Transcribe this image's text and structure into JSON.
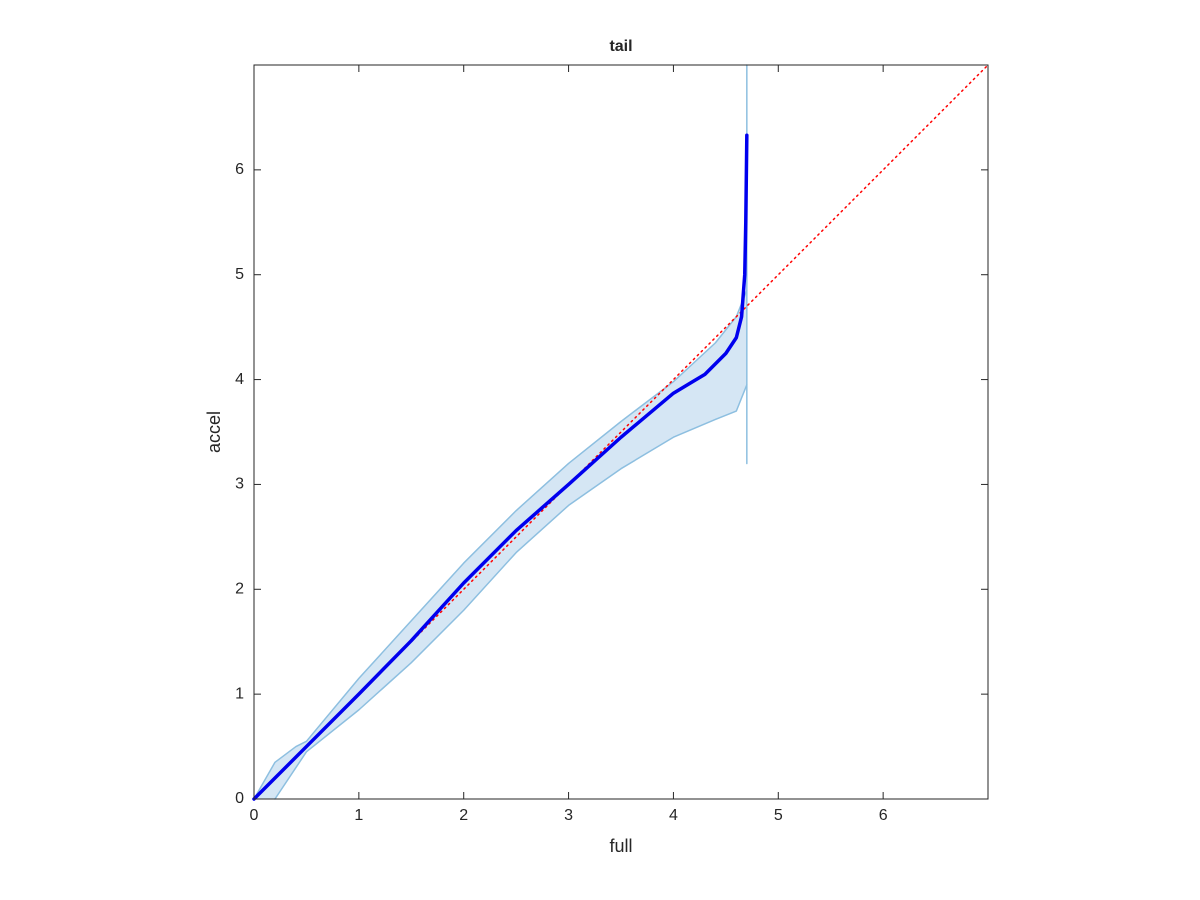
{
  "chart_data": {
    "type": "line",
    "title": "tail",
    "xlabel": "full",
    "ylabel": "accel",
    "xlim": [
      0,
      7
    ],
    "ylim": [
      0,
      7
    ],
    "xticks": [
      0,
      1,
      2,
      3,
      4,
      5,
      6
    ],
    "yticks": [
      0,
      1,
      2,
      3,
      4,
      5,
      6
    ],
    "band_fill": "#d5e6f4",
    "series": [
      {
        "color": "#8dbfe0",
        "width": 1.5,
        "x": [
          0,
          0.2,
          0.4,
          0.5,
          1,
          1.5,
          2,
          2.5,
          3,
          3.5,
          4,
          4.4,
          4.6,
          4.7
        ],
        "values": [
          0,
          0.35,
          0.5,
          0.55,
          1.15,
          1.7,
          2.25,
          2.75,
          3.2,
          3.6,
          3.98,
          4.35,
          4.6,
          4.85
        ]
      },
      {
        "color": "#8dbfe0",
        "width": 1.5,
        "x": [
          0.2,
          0.5,
          1,
          1.5,
          2,
          2.5,
          3,
          3.5,
          4,
          4.4,
          4.6,
          4.7
        ],
        "values": [
          0,
          0.45,
          0.85,
          1.3,
          1.8,
          2.35,
          2.8,
          3.15,
          3.45,
          3.62,
          3.7,
          3.95
        ]
      },
      {
        "color": "#8dbfe0",
        "width": 1.5,
        "x": [
          4.7,
          4.7
        ],
        "values": [
          3.2,
          7
        ]
      },
      {
        "color": "#ff0000",
        "width": 1.5,
        "dash": "1.5 4",
        "x": [
          0,
          7
        ],
        "values": [
          0,
          7
        ]
      },
      {
        "color": "#0000ee",
        "width": 3.5,
        "x": [
          0,
          0.5,
          1,
          1.5,
          2,
          2.5,
          3,
          3.5,
          4,
          4.3,
          4.5,
          4.6,
          4.65,
          4.68,
          4.69,
          4.7
        ],
        "values": [
          0,
          0.5,
          1,
          1.51,
          2.06,
          2.56,
          3,
          3.45,
          3.87,
          4.05,
          4.25,
          4.4,
          4.6,
          5,
          5.5,
          6.33
        ]
      }
    ]
  }
}
